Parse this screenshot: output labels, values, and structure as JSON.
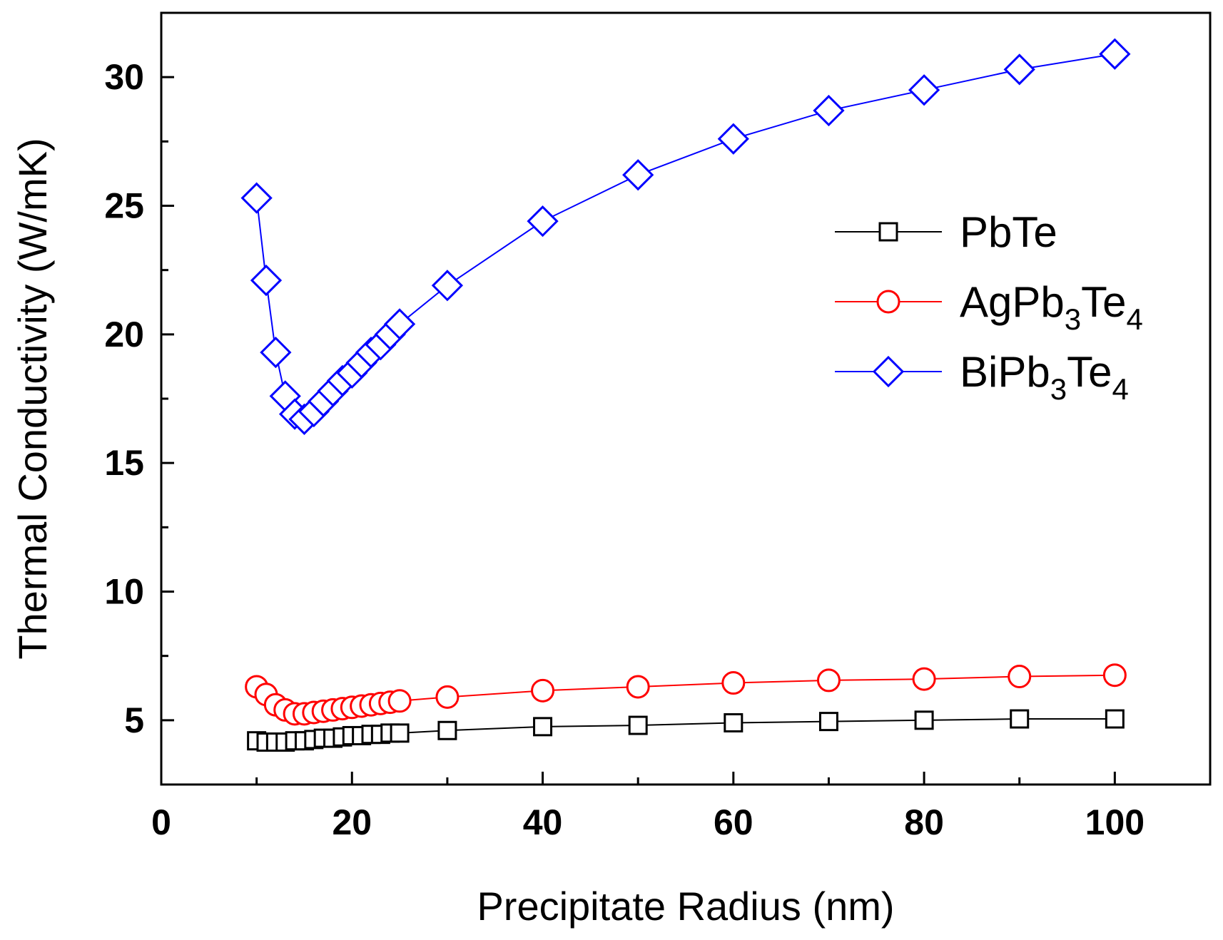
{
  "chart_data": {
    "type": "line",
    "title": "",
    "xlabel": "Precipitate Radius (nm)",
    "ylabel": "Thermal Conductivity (W/mK)",
    "xlim": [
      0,
      110
    ],
    "ylim": [
      2.5,
      32.5
    ],
    "xticks": [
      0,
      20,
      40,
      60,
      80,
      100
    ],
    "yticks": [
      5,
      10,
      15,
      20,
      25,
      30
    ],
    "xtick_labels": [
      "0",
      "20",
      "40",
      "60",
      "80",
      "100"
    ],
    "ytick_labels": [
      "5",
      "10",
      "15",
      "20",
      "25",
      "30"
    ],
    "grid": false,
    "legend_position": "right",
    "x": [
      10,
      11,
      12,
      13,
      14,
      15,
      16,
      17,
      18,
      19,
      20,
      21,
      22,
      23,
      24,
      25,
      30,
      40,
      50,
      60,
      70,
      80,
      90,
      100
    ],
    "series": [
      {
        "name": "PbTe",
        "legend_main": "PbTe",
        "legend_parts": [],
        "color": "#000000",
        "marker": "square",
        "values": [
          4.2,
          4.15,
          4.15,
          4.15,
          4.2,
          4.2,
          4.25,
          4.3,
          4.3,
          4.35,
          4.4,
          4.4,
          4.45,
          4.45,
          4.5,
          4.5,
          4.6,
          4.75,
          4.8,
          4.9,
          4.95,
          5.0,
          5.05,
          5.05
        ]
      },
      {
        "name": "AgPb3Te4",
        "legend_main": "AgPb",
        "legend_parts": [
          {
            "text": "3",
            "sub": true
          },
          {
            "text": "Te",
            "sub": false
          },
          {
            "text": "4",
            "sub": true
          }
        ],
        "color": "#ff0000",
        "marker": "circle",
        "values": [
          6.3,
          6.0,
          5.6,
          5.4,
          5.25,
          5.25,
          5.3,
          5.35,
          5.4,
          5.45,
          5.5,
          5.55,
          5.6,
          5.65,
          5.7,
          5.75,
          5.9,
          6.15,
          6.3,
          6.45,
          6.55,
          6.6,
          6.7,
          6.75
        ]
      },
      {
        "name": "BiPb3Te4",
        "legend_main": "BiPb",
        "legend_parts": [
          {
            "text": "3",
            "sub": true
          },
          {
            "text": "Te",
            "sub": false
          },
          {
            "text": "4",
            "sub": true
          }
        ],
        "color": "#0000ff",
        "marker": "diamond",
        "values": [
          25.3,
          22.1,
          19.3,
          17.6,
          16.9,
          16.7,
          17.0,
          17.4,
          17.8,
          18.2,
          18.5,
          18.9,
          19.3,
          19.6,
          20.0,
          20.4,
          21.9,
          24.4,
          26.2,
          27.6,
          28.7,
          29.5,
          30.3,
          30.9
        ]
      }
    ]
  }
}
